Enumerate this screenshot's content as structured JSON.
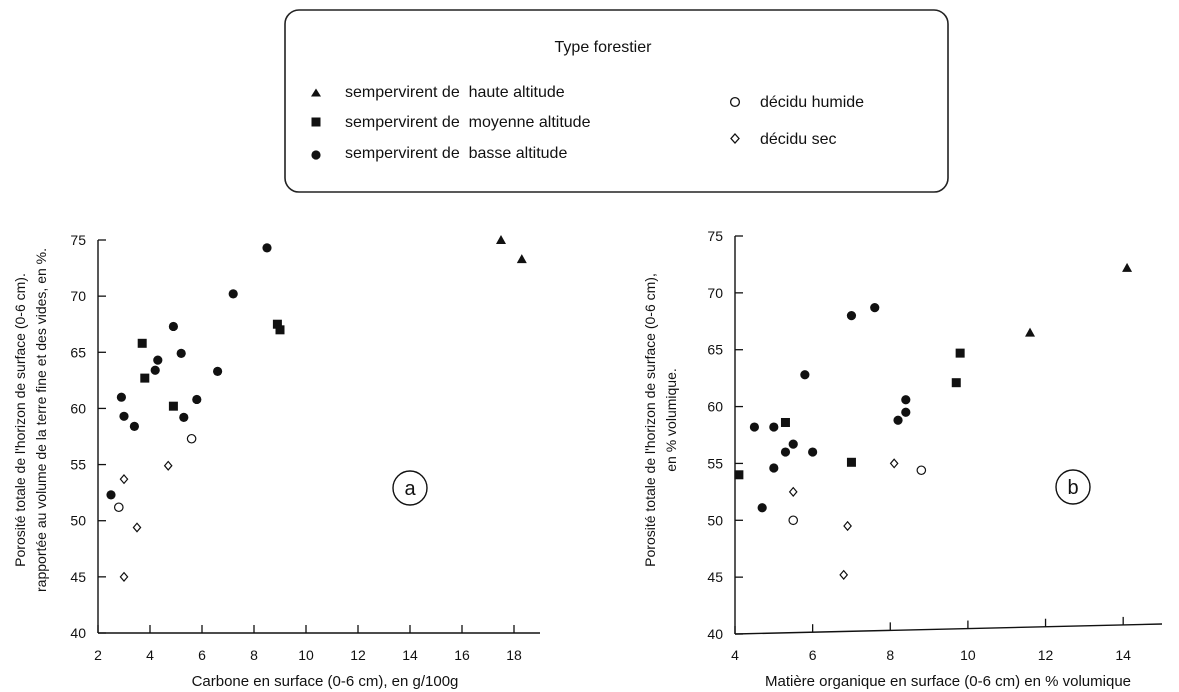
{
  "legend": {
    "title": "Type forestier",
    "entries": [
      {
        "key": "high",
        "symbol": "triangle-filled",
        "label": "sempervirent de  haute altitude"
      },
      {
        "key": "mid",
        "symbol": "square-filled",
        "label": "sempervirent de  moyenne altitude"
      },
      {
        "key": "low",
        "symbol": "circle-filled",
        "label": "sempervirent de  basse altitude"
      },
      {
        "key": "humid",
        "symbol": "circle-open",
        "label": "décidu humide"
      },
      {
        "key": "dry",
        "symbol": "diamond-open",
        "label": "décidu sec"
      }
    ]
  },
  "chart_data": [
    {
      "type": "scatter",
      "panel_label": "a",
      "xlabel": "Carbone en surface (0-6 cm), en g/100g",
      "ylabel_line1": "Porosité totale de l'horizon de surface (0-6 cm).",
      "ylabel_line2": "rapportée au volume de la terre fine et des vides, en %.",
      "xlim": [
        2,
        19
      ],
      "ylim": [
        40,
        75
      ],
      "xticks": [
        2,
        4,
        6,
        8,
        10,
        12,
        14,
        16,
        18
      ],
      "yticks": [
        40,
        45,
        50,
        55,
        60,
        65,
        70,
        75
      ],
      "grid": false,
      "series": [
        {
          "key": "high",
          "points": [
            [
              17.5,
              75.0
            ],
            [
              18.3,
              73.3
            ]
          ]
        },
        {
          "key": "mid",
          "points": [
            [
              3.7,
              65.8
            ],
            [
              3.8,
              62.7
            ],
            [
              4.9,
              60.2
            ],
            [
              8.9,
              67.5
            ],
            [
              9.0,
              67.0
            ]
          ]
        },
        {
          "key": "low",
          "points": [
            [
              2.5,
              52.3
            ],
            [
              2.9,
              61.0
            ],
            [
              3.0,
              59.3
            ],
            [
              3.4,
              58.4
            ],
            [
              4.2,
              63.4
            ],
            [
              4.3,
              64.3
            ],
            [
              4.9,
              67.3
            ],
            [
              5.2,
              64.9
            ],
            [
              5.3,
              59.2
            ],
            [
              5.8,
              60.8
            ],
            [
              6.6,
              63.3
            ],
            [
              7.2,
              70.2
            ],
            [
              8.5,
              74.3
            ]
          ]
        },
        {
          "key": "humid",
          "points": [
            [
              2.8,
              51.2
            ],
            [
              5.6,
              57.3
            ]
          ]
        },
        {
          "key": "dry",
          "points": [
            [
              3.0,
              53.7
            ],
            [
              3.0,
              45.0
            ],
            [
              3.5,
              49.4
            ],
            [
              4.7,
              54.9
            ]
          ]
        }
      ]
    },
    {
      "type": "scatter",
      "panel_label": "b",
      "xlabel": "Matière organique en surface (0-6 cm) en % volumique",
      "ylabel_line1": "Porosité totale de l'horizon de surface (0-6 cm),",
      "ylabel_line2": "en % volumique.",
      "xlim": [
        4,
        15
      ],
      "ylim": [
        40,
        75
      ],
      "xticks": [
        4,
        6,
        8,
        10,
        12,
        14
      ],
      "yticks": [
        40,
        45,
        50,
        55,
        60,
        65,
        70,
        75
      ],
      "grid": false,
      "series": [
        {
          "key": "high",
          "points": [
            [
              11.6,
              66.5
            ],
            [
              14.1,
              72.2
            ]
          ]
        },
        {
          "key": "mid",
          "points": [
            [
              4.1,
              54.0
            ],
            [
              5.3,
              58.6
            ],
            [
              7.0,
              55.1
            ],
            [
              9.7,
              62.1
            ],
            [
              9.8,
              64.7
            ]
          ]
        },
        {
          "key": "low",
          "points": [
            [
              4.5,
              58.2
            ],
            [
              4.7,
              51.1
            ],
            [
              5.0,
              54.6
            ],
            [
              5.0,
              58.2
            ],
            [
              5.3,
              56.0
            ],
            [
              5.5,
              56.7
            ],
            [
              5.8,
              62.8
            ],
            [
              6.0,
              56.0
            ],
            [
              7.0,
              68.0
            ],
            [
              7.6,
              68.7
            ],
            [
              8.2,
              58.8
            ],
            [
              8.4,
              59.5
            ],
            [
              8.4,
              60.6
            ]
          ]
        },
        {
          "key": "humid",
          "points": [
            [
              5.5,
              50.0
            ],
            [
              8.8,
              54.4
            ]
          ]
        },
        {
          "key": "dry",
          "points": [
            [
              5.5,
              52.5
            ],
            [
              6.9,
              49.5
            ],
            [
              6.8,
              45.2
            ],
            [
              8.1,
              55.0
            ]
          ]
        }
      ]
    }
  ]
}
